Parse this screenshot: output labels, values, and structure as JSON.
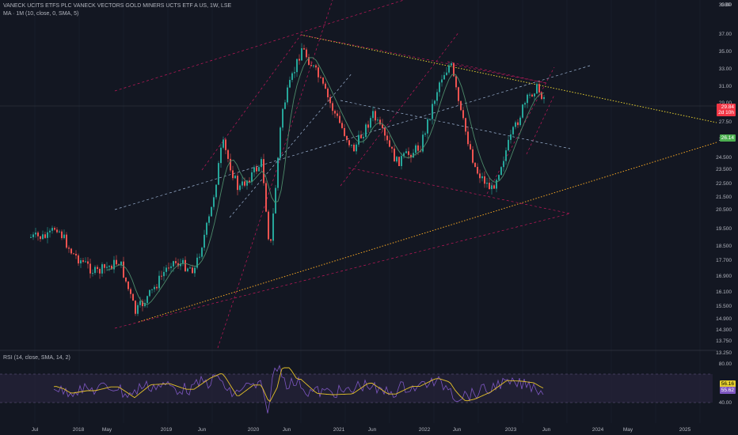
{
  "header": {
    "title": "VANECK UCITS ETFS PLC VANECK VECTORS GOLD MINERS UCTS ETF A US, 1W, LSE",
    "ma_indicator": "MA · 1M (10, close, 0, SMA, 5)",
    "rsi_indicator": "RSI (14, close, SMA, 14, 2)",
    "currency": "GBP"
  },
  "price_axis": {
    "labels": [
      "39.00",
      "37.00",
      "35.00",
      "33.00",
      "31.00",
      "29.00",
      "27.50",
      "25.50",
      "24.500",
      "23.500",
      "22.500",
      "21.500",
      "20.500",
      "19.500",
      "18.500",
      "17.700",
      "16.900",
      "16.100",
      "15.500",
      "14.900",
      "14.300",
      "13.750",
      "13.250"
    ]
  },
  "rsi_axis": {
    "labels": [
      "80.00",
      "40.00"
    ]
  },
  "time_axis": {
    "labels": [
      "Jul",
      "2018",
      "May",
      "2019",
      "Jun",
      "2020",
      "Jun",
      "2021",
      "Jun",
      "2022",
      "Jun",
      "2023",
      "Jun",
      "2024",
      "May",
      "2025"
    ]
  },
  "badges": {
    "last_price": "29.84",
    "countdown": "2d 10h",
    "ma_value": "26.14",
    "rsi_value": "56.16",
    "rsi_ma_value": "55.62"
  },
  "colors": {
    "background": "#131722",
    "up_candle": "#26a69a",
    "down_candle": "#ef5350",
    "ma_line": "#4c8a6a",
    "rsi_line": "#7e57c2",
    "rsi_ma_line": "#e6c229",
    "rsi_band": "#2a2440",
    "trend_yellow": "#e6d030",
    "trend_orange": "#f5a623",
    "trend_red": "#c2185b",
    "trend_blue": "#9fb6d6",
    "last_price_badge": "#f23645",
    "ma_badge": "#4caf50"
  }
}
